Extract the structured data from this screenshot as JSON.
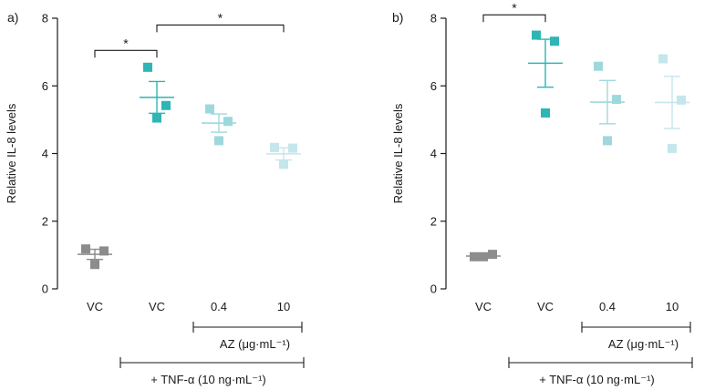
{
  "chart_data": [
    {
      "type": "scatter",
      "panel_label": "a)",
      "ylabel": "Relative IL-8 levels",
      "ylim": [
        0,
        8
      ],
      "yticks": [
        0,
        2,
        4,
        6,
        8
      ],
      "categories": [
        "VC",
        "VC",
        "0.4",
        "10"
      ],
      "colors": [
        "#8c8c8c",
        "#2eb5b5",
        "#9ed8dd",
        "#c4e6ec"
      ],
      "points": [
        [
          1.18,
          1.12,
          0.72
        ],
        [
          6.55,
          5.42,
          5.05
        ],
        [
          5.32,
          4.95,
          4.38
        ],
        [
          4.18,
          4.16,
          3.68
        ]
      ],
      "mean": [
        1.02,
        5.66,
        4.9,
        3.99
      ],
      "sem": [
        0.15,
        0.47,
        0.27,
        0.18
      ],
      "significance": [
        {
          "from": 0,
          "to": 1,
          "y": 7.05,
          "label": "*"
        },
        {
          "from": 1,
          "to": 3,
          "y": 7.8,
          "label": "*"
        }
      ],
      "groups": [
        {
          "label": "AZ (μg·mL⁻¹)",
          "from": 2,
          "to": 3
        },
        {
          "label": "+ TNF-α (10 ng·mL⁻¹)",
          "from": 1,
          "to": 3
        }
      ]
    },
    {
      "type": "scatter",
      "panel_label": "b)",
      "ylabel": "Relative IL-8 levels",
      "ylim": [
        0,
        8
      ],
      "yticks": [
        0,
        2,
        4,
        6,
        8
      ],
      "categories": [
        "VC",
        "VC",
        "0.4",
        "10"
      ],
      "colors": [
        "#8c8c8c",
        "#2eb5b5",
        "#9ed8dd",
        "#c4e6ec"
      ],
      "points": [
        [
          0.95,
          1.02,
          0.95
        ],
        [
          7.5,
          7.32,
          5.2
        ],
        [
          6.58,
          5.6,
          4.38
        ],
        [
          6.8,
          5.58,
          4.15
        ]
      ],
      "mean": [
        0.97,
        6.67,
        5.52,
        5.51
      ],
      "sem": [
        0.05,
        0.71,
        0.64,
        0.77
      ],
      "significance": [
        {
          "from": 0,
          "to": 1,
          "y": 8.1,
          "label": "*"
        }
      ],
      "groups": [
        {
          "label": "AZ (μg·mL⁻¹)",
          "from": 2,
          "to": 3
        },
        {
          "label": "+ TNF-α (10 ng·mL⁻¹)",
          "from": 1,
          "to": 3
        }
      ]
    }
  ]
}
